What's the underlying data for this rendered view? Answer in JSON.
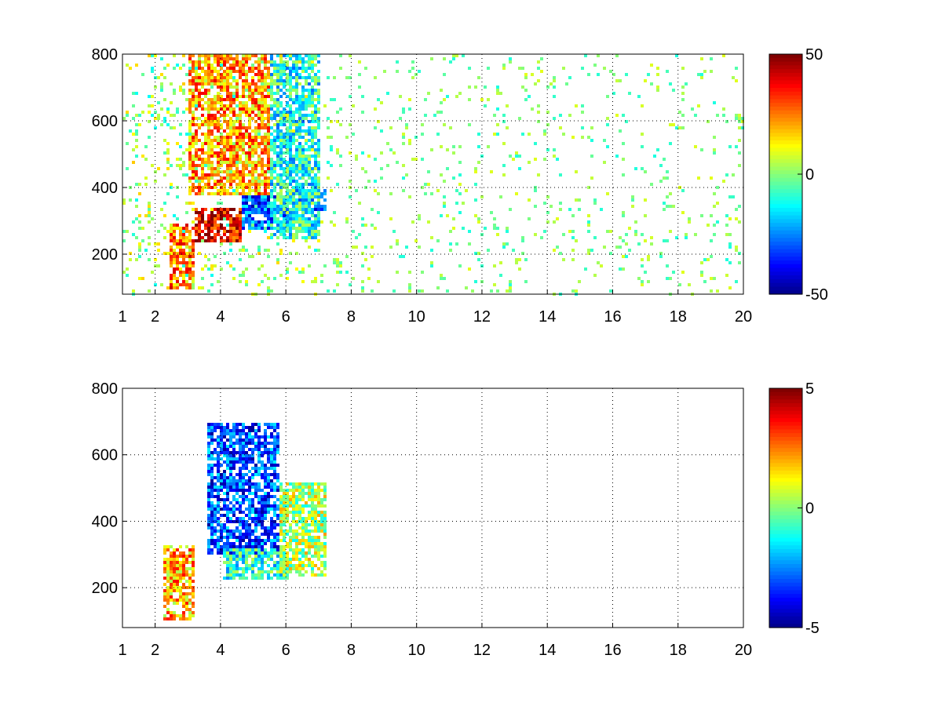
{
  "chart_data": [
    {
      "type": "heatmap",
      "title": "",
      "xlabel": "",
      "ylabel": "",
      "xlim": [
        1,
        20
      ],
      "ylim": [
        80,
        800
      ],
      "x_ticks": [
        1,
        2,
        4,
        6,
        8,
        10,
        12,
        14,
        16,
        18,
        20
      ],
      "y_ticks": [
        200,
        400,
        600,
        800
      ],
      "grid": true,
      "colormap": "jet",
      "clim": [
        -50,
        50
      ],
      "colorbar_ticks": [
        -50,
        0,
        50
      ],
      "description_regions": [
        {
          "x": [
            2.4,
            3.2
          ],
          "y": [
            100,
            300
          ],
          "value": 25
        },
        {
          "x": [
            3.2,
            4.6
          ],
          "y": [
            240,
            340
          ],
          "value": 40
        },
        {
          "x": [
            3.0,
            5.5
          ],
          "y": [
            380,
            800
          ],
          "value": 22
        },
        {
          "x": [
            4.6,
            6.0
          ],
          "y": [
            280,
            380
          ],
          "value": -30
        },
        {
          "x": [
            6.0,
            7.2
          ],
          "y": [
            330,
            400
          ],
          "value": -25
        },
        {
          "x": [
            5.5,
            7.0
          ],
          "y": [
            250,
            800
          ],
          "value": -10
        }
      ]
    },
    {
      "type": "heatmap",
      "title": "",
      "xlabel": "",
      "ylabel": "",
      "xlim": [
        1,
        20
      ],
      "ylim": [
        80,
        800
      ],
      "x_ticks": [
        1,
        2,
        4,
        6,
        8,
        10,
        12,
        14,
        16,
        18,
        20
      ],
      "y_ticks": [
        200,
        400,
        600,
        800
      ],
      "grid": true,
      "colormap": "jet",
      "clim": [
        -5,
        5
      ],
      "colorbar_ticks": [
        -5,
        0,
        5
      ],
      "description_regions": [
        {
          "x": [
            2.2,
            3.2
          ],
          "y": [
            110,
            330
          ],
          "value": 2
        },
        {
          "x": [
            3.5,
            5.8
          ],
          "y": [
            300,
            700
          ],
          "value": -3
        },
        {
          "x": [
            4.0,
            6.0
          ],
          "y": [
            230,
            320
          ],
          "value": -1
        },
        {
          "x": [
            5.8,
            7.2
          ],
          "y": [
            240,
            520
          ],
          "value": 0.5
        }
      ]
    }
  ]
}
